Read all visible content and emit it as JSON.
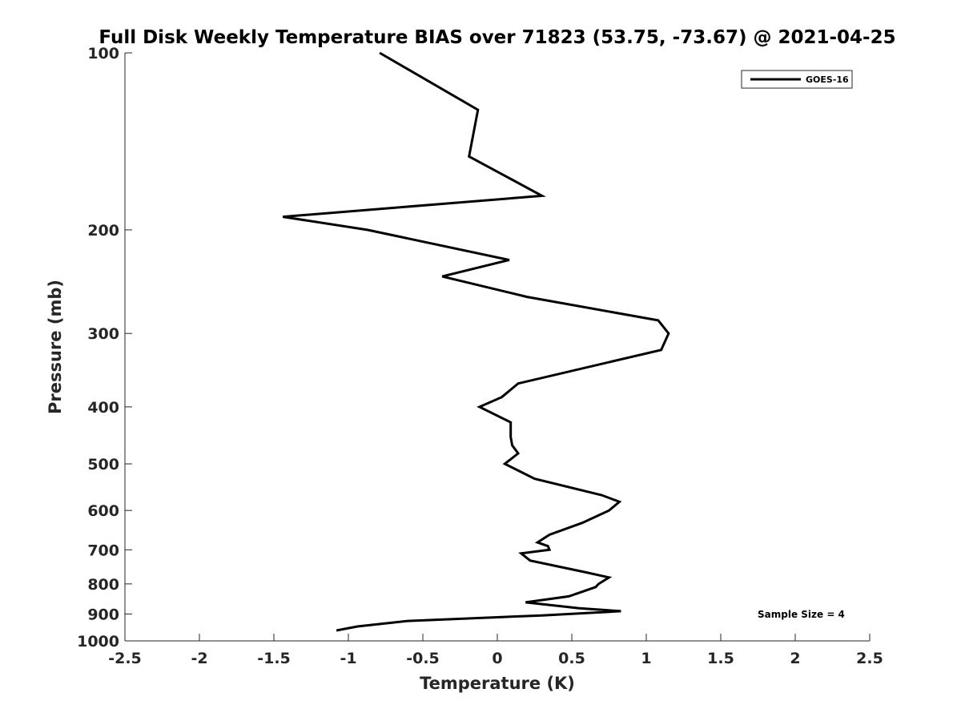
{
  "chart_data": {
    "type": "line",
    "title": "Full Disk Weekly Temperature BIAS over 71823 (53.75, -73.67) @ 2021-04-25",
    "xlabel": "Temperature (K)",
    "ylabel": "Pressure (mb)",
    "xlim": [
      -2.5,
      2.5
    ],
    "ylim": [
      1000,
      100
    ],
    "yscale": "log",
    "xticks": [
      -2.5,
      -2,
      -1.5,
      -1,
      -0.5,
      0,
      0.5,
      1,
      1.5,
      2,
      2.5
    ],
    "xtick_labels": [
      "-2.5",
      "-2",
      "-1.5",
      "-1",
      "-0.5",
      "0",
      "0.5",
      "1",
      "1.5",
      "2",
      "2.5"
    ],
    "yticks": [
      100,
      200,
      300,
      400,
      500,
      600,
      700,
      800,
      900,
      1000
    ],
    "ytick_labels": [
      "100",
      "200",
      "300",
      "400",
      "500",
      "600",
      "700",
      "800",
      "900",
      "1000"
    ],
    "grid": false,
    "legend_position": "top-right",
    "series": [
      {
        "name": "GOES-16",
        "color": "#000000",
        "points": [
          [
            -0.79,
            100
          ],
          [
            -0.13,
            125
          ],
          [
            -0.19,
            150
          ],
          [
            0.3,
            175
          ],
          [
            -1.44,
            190
          ],
          [
            -0.87,
            200
          ],
          [
            0.08,
            225
          ],
          [
            -0.37,
            240
          ],
          [
            0.2,
            260
          ],
          [
            1.08,
            285
          ],
          [
            1.15,
            300
          ],
          [
            1.1,
            320
          ],
          [
            0.14,
            365
          ],
          [
            0.03,
            385
          ],
          [
            -0.12,
            400
          ],
          [
            0.09,
            425
          ],
          [
            0.09,
            450
          ],
          [
            0.1,
            465
          ],
          [
            0.14,
            480
          ],
          [
            0.05,
            500
          ],
          [
            0.25,
            530
          ],
          [
            0.7,
            565
          ],
          [
            0.82,
            580
          ],
          [
            0.75,
            600
          ],
          [
            0.57,
            630
          ],
          [
            0.35,
            660
          ],
          [
            0.27,
            680
          ],
          [
            0.34,
            690
          ],
          [
            0.35,
            700
          ],
          [
            0.16,
            710
          ],
          [
            0.22,
            730
          ],
          [
            0.6,
            765
          ],
          [
            0.75,
            780
          ],
          [
            0.68,
            800
          ],
          [
            0.66,
            810
          ],
          [
            0.48,
            840
          ],
          [
            0.19,
            860
          ],
          [
            0.55,
            880
          ],
          [
            0.83,
            890
          ],
          [
            0.3,
            905
          ],
          [
            -0.6,
            925
          ],
          [
            -0.94,
            945
          ],
          [
            -1.08,
            960
          ]
        ]
      }
    ],
    "annotation": "Sample Size = 4"
  }
}
